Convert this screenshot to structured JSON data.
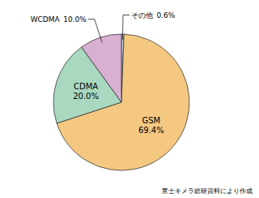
{
  "chart_data": {
    "type": "pie",
    "categories": [
      "その他",
      "GSM",
      "CDMA",
      "WCDMA"
    ],
    "values": [
      0.6,
      69.4,
      20.0,
      10.0
    ],
    "value_labels": [
      "0.6%",
      "69.4%",
      "20.0%",
      "10.0%"
    ],
    "colors": [
      "#C8D8E8",
      "#F5C882",
      "#A8D8C0",
      "#D8B0D0"
    ],
    "data_labels": true,
    "annotations": [
      "富士キメラ総研資料により作成"
    ]
  }
}
